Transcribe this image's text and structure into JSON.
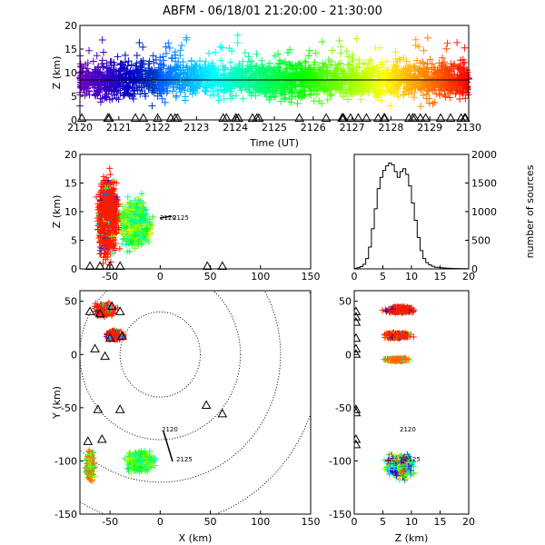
{
  "title": "ABFM - 06/18/01 21:20:00 - 21:30:00",
  "panels": {
    "time_height": {
      "xlabel": "Time (UT)",
      "ylabel": "Z (km)",
      "xticks": [
        "2120",
        "2121",
        "2122",
        "2123",
        "2124",
        "2125",
        "2126",
        "2127",
        "2128",
        "2129",
        "2130"
      ],
      "yticks": [
        "0",
        "5",
        "10",
        "15",
        "20"
      ]
    },
    "xz": {
      "ylabel": "Z (km)",
      "xticks": [
        "-50",
        "0",
        "50",
        "100",
        "150"
      ],
      "yticks": [
        "0",
        "5",
        "10",
        "15",
        "20"
      ],
      "annotations": [
        "2120",
        "2125"
      ]
    },
    "histogram": {
      "ylabel": "number of sources",
      "xticks": [
        "0",
        "5",
        "10",
        "15",
        "20"
      ],
      "yticks": [
        "0",
        "500",
        "1000",
        "1500",
        "2000"
      ]
    },
    "plan": {
      "xlabel": "X (km)",
      "ylabel": "Y (km)",
      "xticks": [
        "-50",
        "0",
        "50",
        "100",
        "150"
      ],
      "yticks": [
        "50",
        "0",
        "-50",
        "-100",
        "-150"
      ],
      "annotations": [
        "2120",
        "2125"
      ]
    },
    "zy": {
      "xlabel": "Z (km)",
      "xticks": [
        "0",
        "5",
        "10",
        "15",
        "20"
      ],
      "yticks": [
        "50",
        "0",
        "-50",
        "-100",
        "-150"
      ],
      "annotations": [
        "2120",
        "2125"
      ]
    }
  },
  "chart_data": [
    {
      "type": "scatter",
      "panel": "time_height",
      "xlabel": "Time (UT)",
      "ylabel": "Z (km)",
      "xlim": [
        2120,
        2130
      ],
      "ylim": [
        0,
        20
      ],
      "color_encoding": "time (purple to red rainbow)",
      "reference_line_y": 8,
      "dense_band_z": [
        3,
        14
      ],
      "station_markers": "triangles at Z=0"
    },
    {
      "type": "scatter",
      "panel": "xz",
      "ylabel": "Z (km)",
      "xlim": [
        -80,
        150
      ],
      "ylim": [
        0,
        20
      ],
      "clusters": [
        {
          "x_range": [
            -65,
            -35
          ],
          "z_range": [
            2,
            17
          ],
          "dominant_color": "red"
        },
        {
          "x_range": [
            -35,
            15
          ],
          "z_range": [
            3,
            14
          ],
          "dominant_color": "yellow/green"
        }
      ],
      "stations_x": [
        -70,
        -60,
        -50,
        -40,
        47,
        62
      ]
    },
    {
      "type": "bar",
      "panel": "histogram",
      "ylabel": "number of sources",
      "xlim": [
        0,
        20
      ],
      "ylim": [
        0,
        2000
      ],
      "bin_width": 0.5,
      "bin_starts": [
        0,
        0.5,
        1,
        1.5,
        2,
        2.5,
        3,
        3.5,
        4,
        4.5,
        5,
        5.5,
        6,
        6.5,
        7,
        7.5,
        8,
        8.5,
        9,
        9.5,
        10,
        10.5,
        11,
        11.5,
        12,
        12.5,
        13,
        13.5,
        14,
        14.5,
        15,
        15.5,
        16,
        16.5,
        17,
        17.5,
        18,
        18.5,
        19,
        19.5
      ],
      "values": [
        10,
        20,
        40,
        80,
        180,
        380,
        700,
        1050,
        1400,
        1600,
        1720,
        1800,
        1850,
        1820,
        1700,
        1600,
        1700,
        1750,
        1650,
        1450,
        1150,
        850,
        550,
        320,
        180,
        110,
        70,
        45,
        30,
        25,
        20,
        15,
        12,
        10,
        8,
        6,
        5,
        4,
        3,
        2
      ]
    },
    {
      "type": "scatter",
      "panel": "plan",
      "xlabel": "X (km)",
      "ylabel": "Y (km)",
      "xlim": [
        -80,
        150
      ],
      "ylim": [
        -150,
        60
      ],
      "range_rings_km": [
        40,
        80,
        120,
        160
      ],
      "clusters": [
        {
          "x_center": -55,
          "y_center": 42,
          "dominant_color": "red"
        },
        {
          "x_center": -45,
          "y_center": 18,
          "dominant_color": "red"
        },
        {
          "x_center": -65,
          "y_center": -92,
          "dominant_color": "orange"
        },
        {
          "x_center": -20,
          "y_center": -100,
          "dominant_color": "yellow/green"
        }
      ],
      "track": [
        [
          5,
          -63
        ],
        [
          14,
          -92
        ]
      ]
    },
    {
      "type": "scatter",
      "panel": "zy",
      "xlabel": "Z (km)",
      "xlim": [
        0,
        20
      ],
      "ylim": [
        -150,
        60
      ],
      "clusters": [
        {
          "z_range": [
            1,
            15
          ],
          "y_center": 42,
          "dominant_color": "red"
        },
        {
          "z_range": [
            1,
            14
          ],
          "y_center": 18,
          "dominant_color": "red"
        },
        {
          "z_range": [
            3,
            12
          ],
          "y_center": -5,
          "dominant_color": "orange"
        },
        {
          "z_range": [
            2,
            16
          ],
          "y_center": -105,
          "dominant_color": "mixed"
        }
      ]
    }
  ]
}
